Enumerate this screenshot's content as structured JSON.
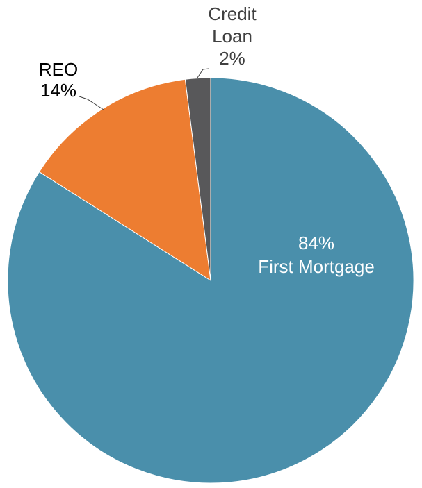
{
  "chart_data": {
    "type": "pie",
    "title": "",
    "slices": [
      {
        "name": "First Mortgage",
        "value": 84,
        "label_lines": [
          "84%",
          "First Mortgage"
        ],
        "color": "#4a8fab",
        "label_color": "#ffffff"
      },
      {
        "name": "REO",
        "value": 14,
        "label_lines": [
          "REO",
          "14%"
        ],
        "color": "#ed7d31",
        "label_color": "#000000"
      },
      {
        "name": "Credit Loan",
        "value": 2,
        "label_lines": [
          "Credit",
          "Loan",
          "2%"
        ],
        "color": "#58585a",
        "label_color": "#404040"
      }
    ],
    "start": "top",
    "direction": "clockwise",
    "legend": "none"
  }
}
